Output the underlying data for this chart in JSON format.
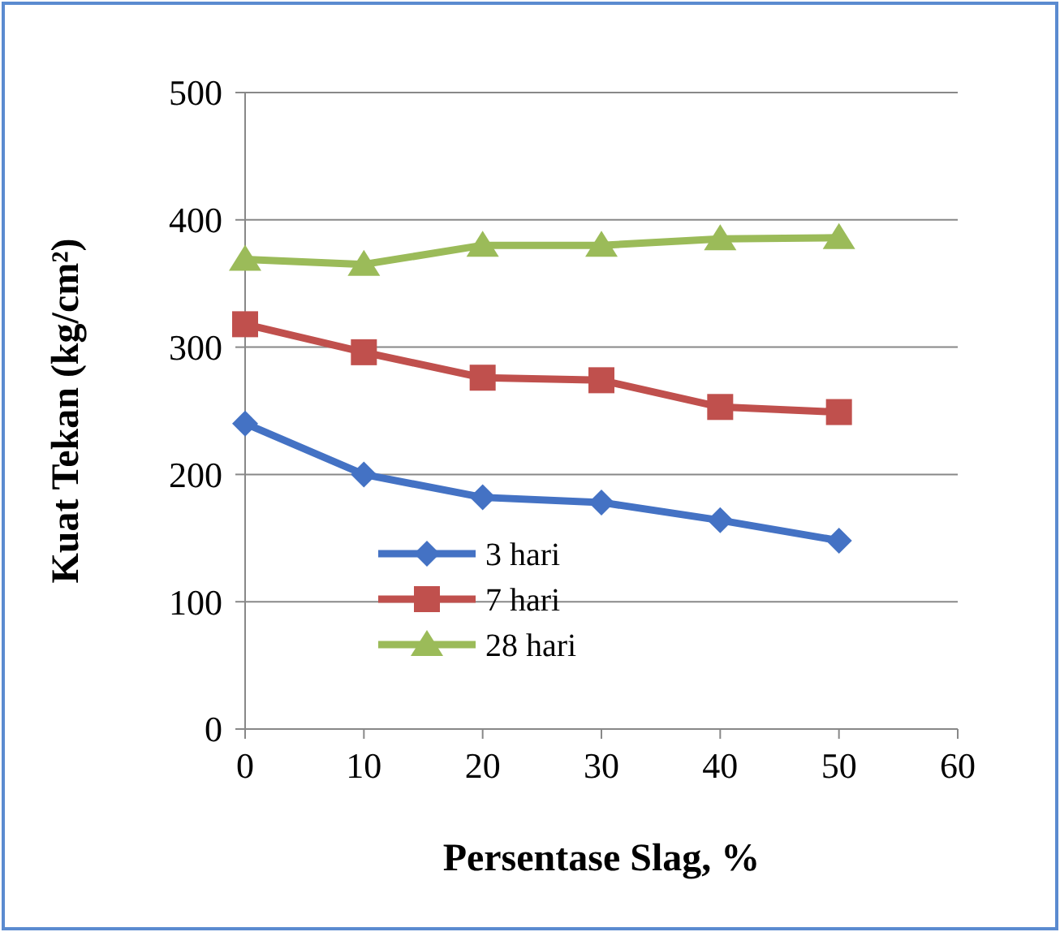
{
  "chart_data": {
    "type": "line",
    "xlabel": "Persentase Slag, %",
    "ylabel": "Kuat Tekan (kg/cm²)",
    "x": [
      0,
      10,
      20,
      30,
      40,
      50
    ],
    "series": [
      {
        "name": "3 hari",
        "color": "#4472c4",
        "marker": "diamond",
        "values": [
          240,
          200,
          182,
          178,
          164,
          148
        ]
      },
      {
        "name": "7 hari",
        "color": "#c0504d",
        "marker": "square",
        "values": [
          318,
          296,
          276,
          274,
          253,
          249
        ]
      },
      {
        "name": "28 hari",
        "color": "#9bbb59",
        "marker": "triangle",
        "values": [
          369,
          365,
          380,
          380,
          385,
          386
        ]
      }
    ],
    "xlim": [
      0,
      60
    ],
    "xticks": [
      0,
      10,
      20,
      30,
      40,
      50,
      60
    ],
    "ylim": [
      0,
      500
    ],
    "yticks": [
      0,
      100,
      200,
      300,
      400,
      500
    ],
    "grid": "y",
    "legend": "bottom left",
    "line_style": "solid"
  }
}
